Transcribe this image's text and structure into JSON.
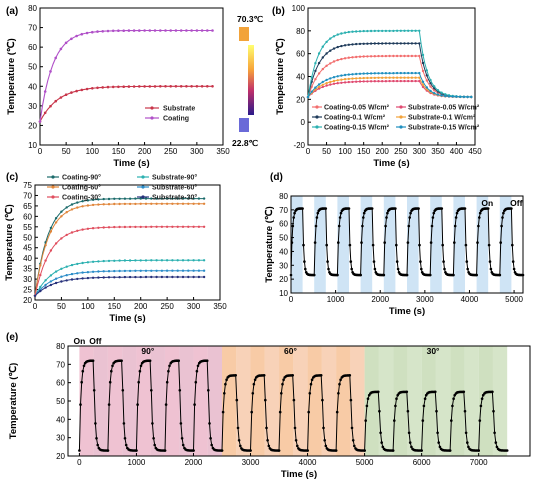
{
  "panels": {
    "a": {
      "label": "(a)"
    },
    "b": {
      "label": "(b)"
    },
    "c": {
      "label": "(c)"
    },
    "d": {
      "label": "(d)"
    },
    "e": {
      "label": "(e)"
    }
  },
  "colors": {
    "substrate_a": "#c8354a",
    "coating_a": "#b050c8",
    "cycle_line": "#000000",
    "bg_blue": "#cfe4f5",
    "bg_pink": "#efc2d2",
    "bg_pink_dark": "#d990ad",
    "bg_orange": "#f8cba6",
    "bg_orange_dark": "#f2ad7e",
    "bg_green": "#cfe0c0",
    "bg_green_dark": "#b5cf9d"
  },
  "chart_data": [
    {
      "id": "a",
      "type": "line",
      "xlabel": "Time (s)",
      "ylabel": "Temperature (℃)",
      "xlim": [
        0,
        350
      ],
      "ylim": [
        10,
        80
      ],
      "xticks": [
        0,
        50,
        100,
        150,
        200,
        250,
        300,
        350
      ],
      "yticks": [
        10,
        20,
        30,
        40,
        50,
        60,
        70,
        80
      ],
      "series": [
        {
          "name": "Substrate",
          "color": "#c8354a",
          "t0": 22,
          "tmax": 40,
          "tau": 35,
          "xmax": 330
        },
        {
          "name": "Coating",
          "color": "#b050c8",
          "t0": 22,
          "tmax": 68.5,
          "tau": 25,
          "xmax": 330
        }
      ],
      "colorbar": {
        "max_label": "70.3℃",
        "min_label": "22.8℃"
      }
    },
    {
      "id": "b",
      "type": "line",
      "xlabel": "Time (s)",
      "ylabel": "Temperature (℃)",
      "xlim": [
        0,
        450
      ],
      "ylim": [
        -20,
        100
      ],
      "xticks": [
        0,
        50,
        100,
        150,
        200,
        250,
        300,
        350,
        400,
        450
      ],
      "yticks": [
        -20,
        0,
        20,
        40,
        60,
        80,
        100
      ],
      "off_time": 300,
      "series": [
        {
          "name": "Coating-0.05 W/cm²",
          "color": "#f26d6d",
          "tmax": 58,
          "tau": 35
        },
        {
          "name": "Substrate-0.05 W/cm²",
          "color": "#e04a70",
          "tmax": 36,
          "tau": 40
        },
        {
          "name": "Coating-0.1 W/cm²",
          "color": "#1e3a5a",
          "tmax": 69,
          "tau": 30
        },
        {
          "name": "Substrate-0.1 W/cm²",
          "color": "#f2a23a",
          "tmax": 39,
          "tau": 40
        },
        {
          "name": "Coating-0.15 W/cm²",
          "color": "#2bb0b0",
          "tmax": 80,
          "tau": 28
        },
        {
          "name": "Substrate-0.15 W/cm²",
          "color": "#1f8fbf",
          "tmax": 43,
          "tau": 40
        }
      ]
    },
    {
      "id": "c",
      "type": "line",
      "xlabel": "Time (s)",
      "ylabel": "Temperature (℃)",
      "xlim": [
        0,
        350
      ],
      "ylim": [
        20,
        75
      ],
      "xticks": [
        0,
        50,
        100,
        150,
        200,
        250,
        300,
        350
      ],
      "yticks": [
        20,
        25,
        30,
        35,
        40,
        45,
        50,
        55,
        60,
        65,
        70,
        75
      ],
      "series": [
        {
          "name": "Coating-90°",
          "color": "#1a6a6a",
          "tmax": 68.5,
          "tau": 25
        },
        {
          "name": "Substrate-90°",
          "color": "#2bb0b0",
          "tmax": 39,
          "tau": 35
        },
        {
          "name": "Coating-60°",
          "color": "#e0853a",
          "tmax": 66,
          "tau": 25
        },
        {
          "name": "Substrate-60°",
          "color": "#2a8cc8",
          "tmax": 34,
          "tau": 35
        },
        {
          "name": "Coating-30°",
          "color": "#e04e5e",
          "tmax": 55,
          "tau": 28
        },
        {
          "name": "Substrate-30°",
          "color": "#26307a",
          "tmax": 31,
          "tau": 35
        }
      ]
    },
    {
      "id": "d",
      "type": "line",
      "xlabel": "Time (s)",
      "ylabel": "Temperature (℃)",
      "xlim": [
        0,
        5200
      ],
      "ylim": [
        10,
        80
      ],
      "xticks": [
        0,
        1000,
        2000,
        3000,
        4000,
        5000
      ],
      "yticks": [
        10,
        20,
        30,
        40,
        50,
        60,
        70,
        80
      ],
      "cycles": 10,
      "period": 520,
      "high": 71,
      "low": 23,
      "labels": {
        "on": "On",
        "off": "Off"
      }
    },
    {
      "id": "e",
      "type": "line",
      "xlabel": "Time (s)",
      "ylabel": "Temperature (℃)",
      "xlim": [
        -200,
        7900
      ],
      "ylim": [
        20,
        80
      ],
      "xticks": [
        0,
        1000,
        2000,
        3000,
        4000,
        5000,
        6000,
        7000
      ],
      "yticks": [
        20,
        30,
        40,
        50,
        60,
        70,
        80
      ],
      "period": 500,
      "low": 23,
      "groups": [
        {
          "label": "90°",
          "cycles": 5,
          "high": 72,
          "start": 0
        },
        {
          "label": "60°",
          "cycles": 5,
          "high": 64,
          "start": 2500
        },
        {
          "label": "30°",
          "cycles": 5,
          "high": 55,
          "start": 5000
        }
      ],
      "labels": {
        "on": "On",
        "off": "Off"
      }
    }
  ]
}
